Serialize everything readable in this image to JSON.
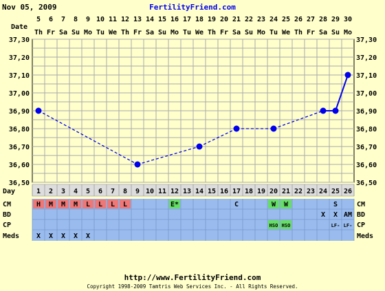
{
  "header": {
    "date": "Nov 05, 2009",
    "site": "FertilityFriend.com"
  },
  "footer": {
    "url": "http://www.FertilityFriend.com",
    "copyright": "Copyright 1998-2009 Tamtris Web Services Inc. - All Rights Reserved."
  },
  "row_labels": {
    "date": "Date",
    "day": "Day",
    "cm": "CM",
    "bd": "BD",
    "cp": "CP",
    "meds": "Meds"
  },
  "dates": {
    "days": [
      "5",
      "6",
      "7",
      "8",
      "9",
      "10",
      "11",
      "12",
      "13",
      "14",
      "15",
      "16",
      "17",
      "18",
      "19",
      "20",
      "21",
      "22",
      "23",
      "24",
      "25",
      "26",
      "27",
      "28",
      "29",
      "30"
    ],
    "weekdays": [
      "Th",
      "Fr",
      "Sa",
      "Su",
      "Mo",
      "Tu",
      "We",
      "Th",
      "Fr",
      "Sa",
      "Su",
      "Mo",
      "Tu",
      "We",
      "Th",
      "Fr",
      "Sa",
      "Su",
      "Mo",
      "Tu",
      "We",
      "Th",
      "Fr",
      "Sa",
      "Su",
      "Mo"
    ]
  },
  "cycle_days": [
    "1",
    "2",
    "3",
    "4",
    "5",
    "6",
    "7",
    "8",
    "9",
    "10",
    "11",
    "12",
    "13",
    "14",
    "15",
    "16",
    "17",
    "18",
    "19",
    "20",
    "21",
    "22",
    "23",
    "24",
    "25",
    "26"
  ],
  "chart_data": {
    "type": "line",
    "y_ticks": [
      "36,50",
      "36,60",
      "36,70",
      "36,80",
      "36,90",
      "37,00",
      "37,10",
      "37,20",
      "37,30"
    ],
    "ylim": [
      36.5,
      37.3
    ],
    "grid": true,
    "series": [
      {
        "points": [
          {
            "day": 1,
            "temp": 36.9
          },
          {
            "day": 9,
            "temp": 36.6
          },
          {
            "day": 14,
            "temp": 36.7
          },
          {
            "day": 17,
            "temp": 36.8
          },
          {
            "day": 20,
            "temp": 36.8
          },
          {
            "day": 24,
            "temp": 36.9
          },
          {
            "day": 25,
            "temp": 36.9
          },
          {
            "day": 26,
            "temp": 37.1
          }
        ]
      }
    ]
  },
  "cm_row": [
    {
      "day": 1,
      "text": "H",
      "color": "#ee7777"
    },
    {
      "day": 2,
      "text": "M",
      "color": "#ee7777"
    },
    {
      "day": 3,
      "text": "M",
      "color": "#ee7777"
    },
    {
      "day": 4,
      "text": "M",
      "color": "#ee7777"
    },
    {
      "day": 5,
      "text": "L",
      "color": "#ee7777"
    },
    {
      "day": 6,
      "text": "L",
      "color": "#ee7777"
    },
    {
      "day": 7,
      "text": "L",
      "color": "#ee7777"
    },
    {
      "day": 8,
      "text": "L",
      "color": "#ee7777"
    },
    {
      "day": 12,
      "text": "E*",
      "color": "#66dd66"
    },
    {
      "day": 17,
      "text": "C",
      "color": ""
    },
    {
      "day": 20,
      "text": "W",
      "color": "#66dd66"
    },
    {
      "day": 21,
      "text": "W",
      "color": "#66dd66"
    },
    {
      "day": 25,
      "text": "S",
      "color": ""
    }
  ],
  "bd_row": [
    {
      "day": 24,
      "text": "X"
    },
    {
      "day": 25,
      "text": "X"
    },
    {
      "day": 26,
      "text": "AM"
    }
  ],
  "cp_row": [
    {
      "day": 20,
      "text": "HSO",
      "color": "#66dd66"
    },
    {
      "day": 21,
      "text": "HSO",
      "color": "#66dd66"
    },
    {
      "day": 25,
      "text": "LF-"
    },
    {
      "day": 26,
      "text": "LF-"
    }
  ],
  "meds_row": [
    {
      "day": 1,
      "text": "X"
    },
    {
      "day": 2,
      "text": "X"
    },
    {
      "day": 3,
      "text": "X"
    },
    {
      "day": 4,
      "text": "X"
    },
    {
      "day": 5,
      "text": "X"
    }
  ],
  "colors": {
    "background": "#ffffcc",
    "plot_background": "#ffffcc",
    "grid": "#aaaaaa",
    "line": "#0000ee",
    "row_blue": "#99bbee",
    "day_row": "#dddddd",
    "site_link": "#0000ee"
  }
}
